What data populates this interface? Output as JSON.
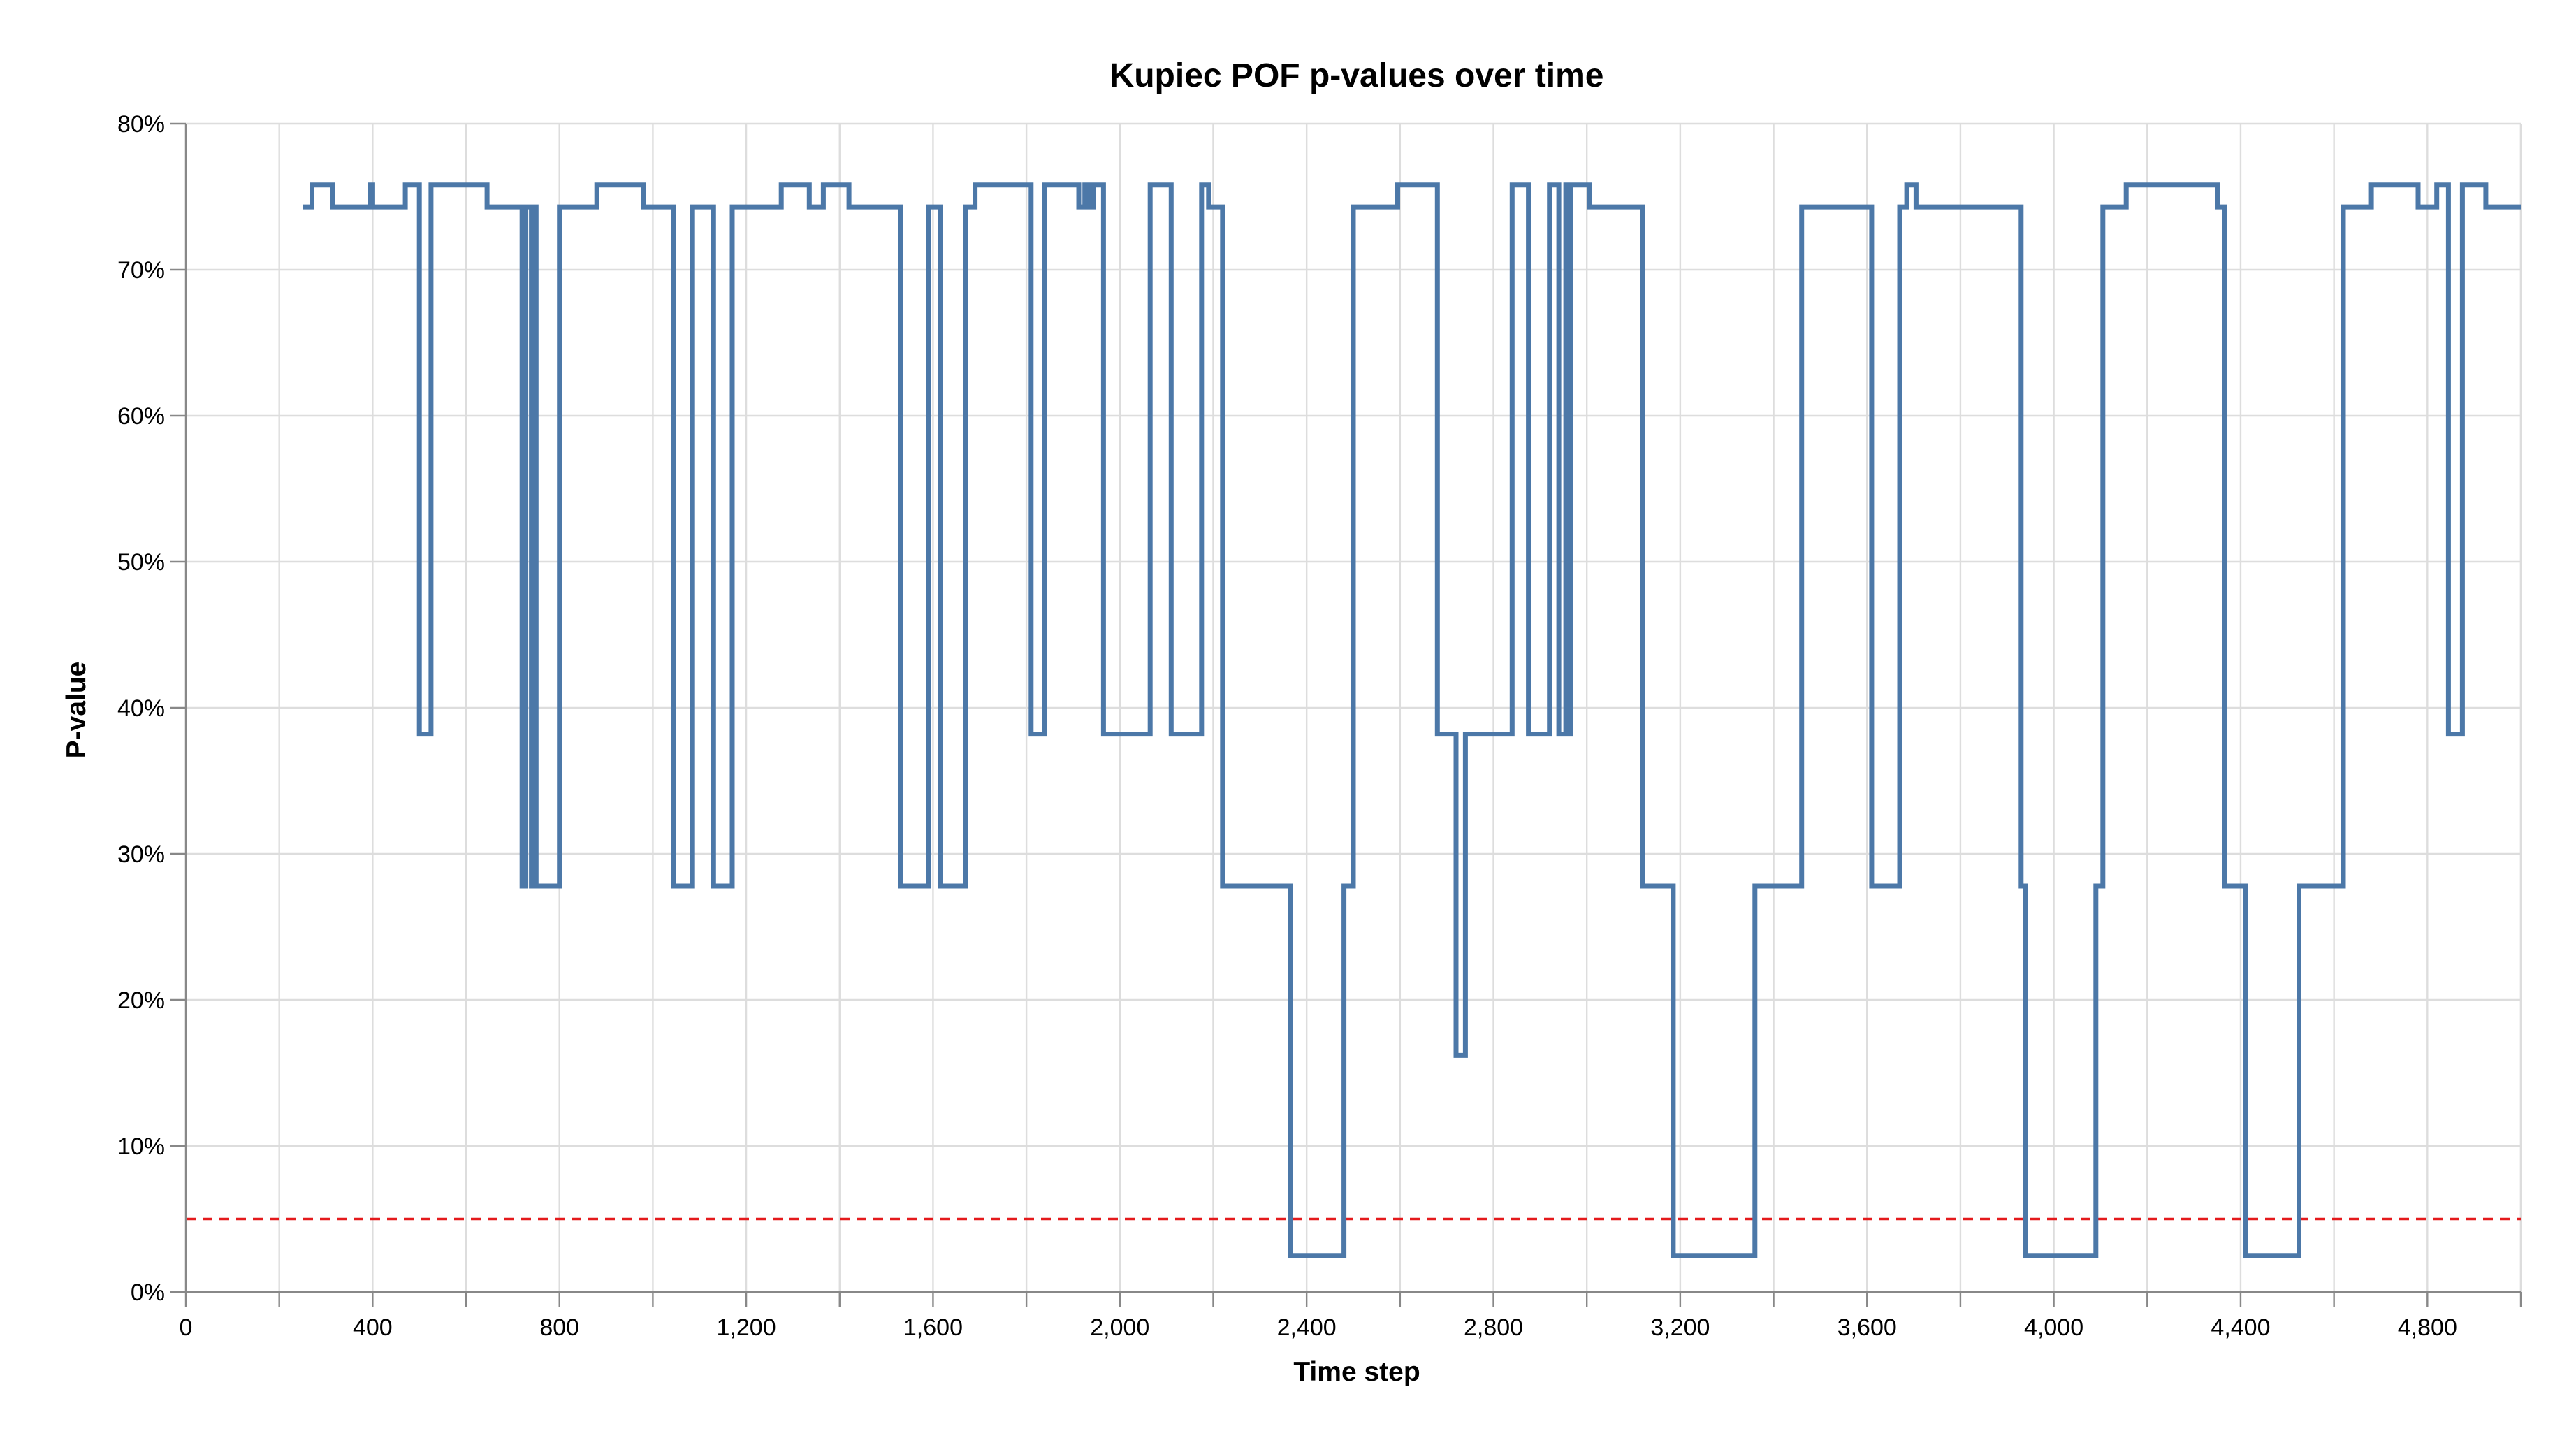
{
  "chart_data": {
    "type": "line",
    "title": "Kupiec POF p-values over time",
    "xlabel": "Time step",
    "ylabel": "P-value",
    "xlim": [
      0,
      5000
    ],
    "ylim": [
      0,
      0.8
    ],
    "x_ticks": [
      0,
      400,
      800,
      1200,
      1600,
      2000,
      2400,
      2800,
      3200,
      3600,
      4000,
      4400,
      4800
    ],
    "x_tick_labels": [
      "0",
      "400",
      "800",
      "1,200",
      "1,600",
      "2,000",
      "2,400",
      "2,800",
      "3,200",
      "3,600",
      "4,000",
      "4,400",
      "4,800"
    ],
    "y_ticks": [
      0,
      0.1,
      0.2,
      0.3,
      0.4,
      0.5,
      0.6,
      0.7,
      0.8
    ],
    "y_tick_labels": [
      "0%",
      "10%",
      "20%",
      "30%",
      "40%",
      "50%",
      "60%",
      "70%",
      "80%"
    ],
    "grid": true,
    "threshold": {
      "value": 0.05,
      "color": "#e41a1c",
      "style": "dashed"
    },
    "colors": {
      "series": "#4c78a8",
      "threshold": "#e41a1c"
    },
    "series": [
      {
        "step": "after",
        "points": [
          [
            250,
            0.743
          ],
          [
            270,
            0.758
          ],
          [
            315,
            0.743
          ],
          [
            395,
            0.758
          ],
          [
            400,
            0.743
          ],
          [
            470,
            0.758
          ],
          [
            500,
            0.382
          ],
          [
            525,
            0.758
          ],
          [
            645,
            0.743
          ],
          [
            720,
            0.278
          ],
          [
            728,
            0.743
          ],
          [
            740,
            0.278
          ],
          [
            745,
            0.743
          ],
          [
            750,
            0.278
          ],
          [
            800,
            0.743
          ],
          [
            880,
            0.758
          ],
          [
            980,
            0.743
          ],
          [
            1045,
            0.278
          ],
          [
            1085,
            0.743
          ],
          [
            1130,
            0.278
          ],
          [
            1170,
            0.743
          ],
          [
            1275,
            0.758
          ],
          [
            1335,
            0.743
          ],
          [
            1365,
            0.758
          ],
          [
            1420,
            0.743
          ],
          [
            1530,
            0.278
          ],
          [
            1590,
            0.743
          ],
          [
            1615,
            0.278
          ],
          [
            1670,
            0.743
          ],
          [
            1690,
            0.758
          ],
          [
            1810,
            0.382
          ],
          [
            1838,
            0.758
          ],
          [
            1912,
            0.743
          ],
          [
            1925,
            0.758
          ],
          [
            1935,
            0.743
          ],
          [
            1943,
            0.758
          ],
          [
            1965,
            0.382
          ],
          [
            2065,
            0.758
          ],
          [
            2110,
            0.382
          ],
          [
            2175,
            0.758
          ],
          [
            2190,
            0.743
          ],
          [
            2220,
            0.278
          ],
          [
            2365,
            0.025
          ],
          [
            2480,
            0.278
          ],
          [
            2500,
            0.743
          ],
          [
            2595,
            0.758
          ],
          [
            2680,
            0.382
          ],
          [
            2720,
            0.162
          ],
          [
            2740,
            0.382
          ],
          [
            2840,
            0.758
          ],
          [
            2875,
            0.382
          ],
          [
            2920,
            0.758
          ],
          [
            2940,
            0.382
          ],
          [
            2955,
            0.758
          ],
          [
            2960,
            0.382
          ],
          [
            2965,
            0.758
          ],
          [
            3005,
            0.743
          ],
          [
            3120,
            0.278
          ],
          [
            3185,
            0.025
          ],
          [
            3360,
            0.278
          ],
          [
            3460,
            0.743
          ],
          [
            3610,
            0.278
          ],
          [
            3670,
            0.743
          ],
          [
            3685,
            0.758
          ],
          [
            3705,
            0.743
          ],
          [
            3930,
            0.278
          ],
          [
            3940,
            0.025
          ],
          [
            4090,
            0.278
          ],
          [
            4105,
            0.743
          ],
          [
            4155,
            0.758
          ],
          [
            4350,
            0.743
          ],
          [
            4365,
            0.278
          ],
          [
            4410,
            0.025
          ],
          [
            4525,
            0.278
          ],
          [
            4620,
            0.743
          ],
          [
            4680,
            0.758
          ],
          [
            4780,
            0.743
          ],
          [
            4820,
            0.758
          ],
          [
            4845,
            0.382
          ],
          [
            4875,
            0.758
          ],
          [
            4925,
            0.743
          ],
          [
            5000,
            0.743
          ]
        ]
      }
    ]
  }
}
